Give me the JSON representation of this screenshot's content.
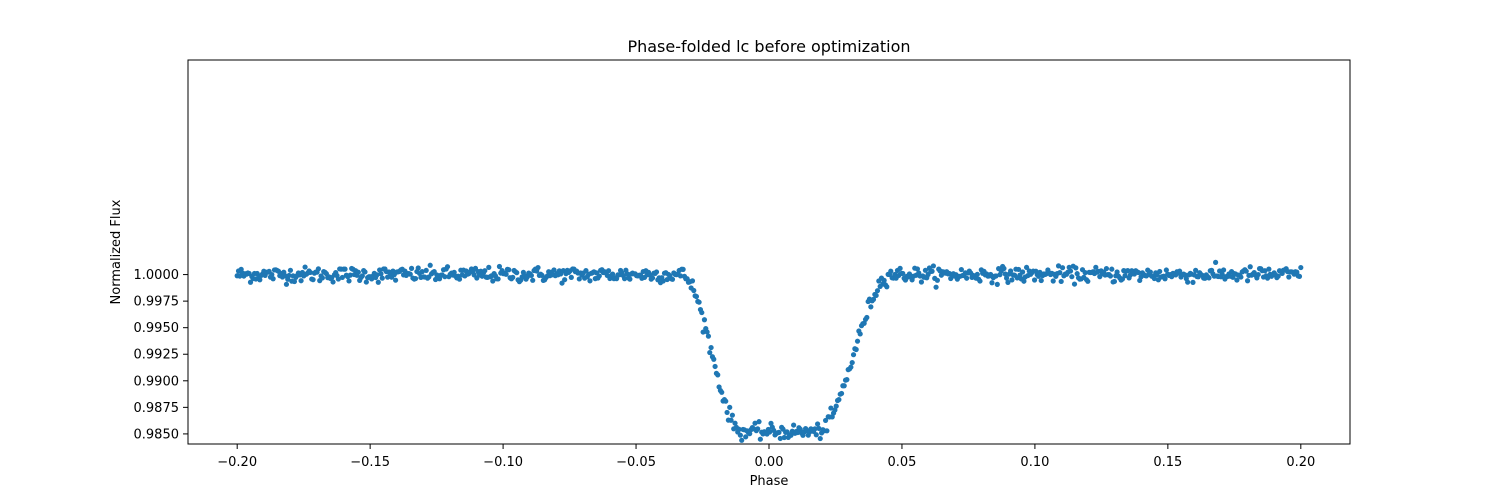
{
  "chart_data": {
    "type": "scatter",
    "title": "Phase-folded lc before optimization",
    "xlabel": "Phase",
    "ylabel": "Normalized Flux",
    "xlim": [
      -0.2185,
      0.2185
    ],
    "ylim": [
      0.98405,
      1.0202
    ],
    "xticks": [
      -0.2,
      -0.15,
      -0.1,
      -0.05,
      0.0,
      0.05,
      0.1,
      0.15,
      0.2
    ],
    "xtick_labels": [
      "−0.20",
      "−0.15",
      "−0.10",
      "−0.05",
      "0.00",
      "0.05",
      "0.10",
      "0.15",
      "0.20"
    ],
    "yticks": [
      0.985,
      0.9875,
      0.99,
      0.9925,
      0.995,
      0.9975,
      1.0
    ],
    "ytick_labels": [
      "0.9850",
      "0.9875",
      "0.9900",
      "0.9925",
      "0.9950",
      "0.9975",
      "1.0000"
    ],
    "grid": false,
    "marker_color": "#1f77b4",
    "n_points": 800,
    "model": {
      "baseline": 1.0,
      "transit_center": 0.004,
      "ingress_start": -0.033,
      "flat_bottom_start": -0.01,
      "flat_bottom_end": 0.018,
      "egress_end": 0.046,
      "bottom_flux": 0.9852,
      "noise_sigma": 0.00035
    }
  }
}
